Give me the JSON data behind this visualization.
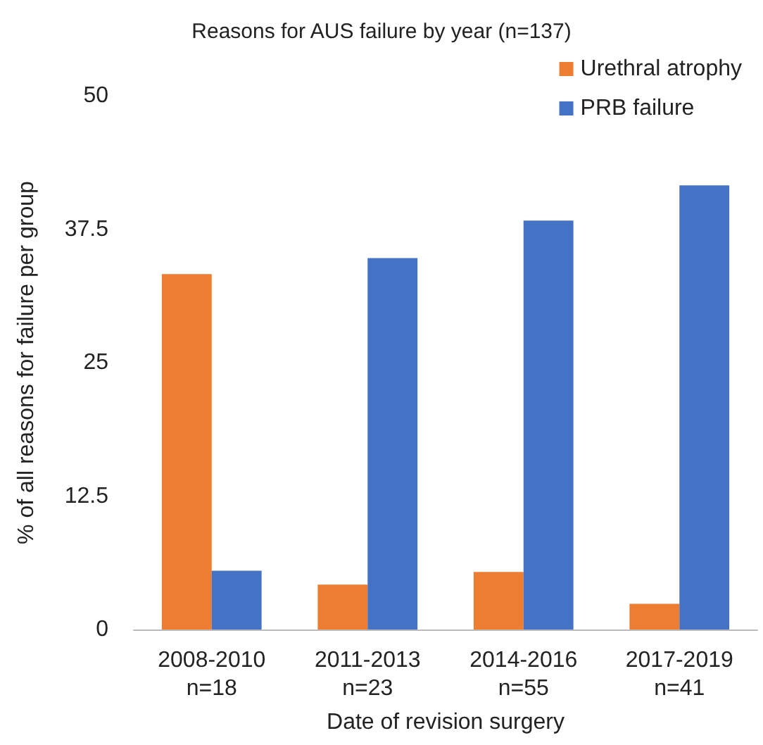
{
  "chart_data": {
    "type": "bar",
    "title": "Reasons for AUS failure by year (n=137)",
    "xlabel": "Date of revision surgery",
    "ylabel": "% of all reasons for failure per group",
    "categories": [
      "2008-2010\nn=18",
      "2011-2013\nn=23",
      "2014-2016\nn=55",
      "2017-2019\nn=41"
    ],
    "series": [
      {
        "name": "Urethral atrophy",
        "color": "#ed7d31",
        "values": [
          33.3,
          4.2,
          5.4,
          2.4
        ]
      },
      {
        "name": "PRB failure",
        "color": "#4472c4",
        "values": [
          5.5,
          34.8,
          38.3,
          41.6
        ]
      }
    ],
    "ylim": [
      0,
      50
    ],
    "yticks": [
      0,
      12.5,
      25,
      37.5,
      50
    ],
    "grid": false,
    "legend": "top right"
  }
}
